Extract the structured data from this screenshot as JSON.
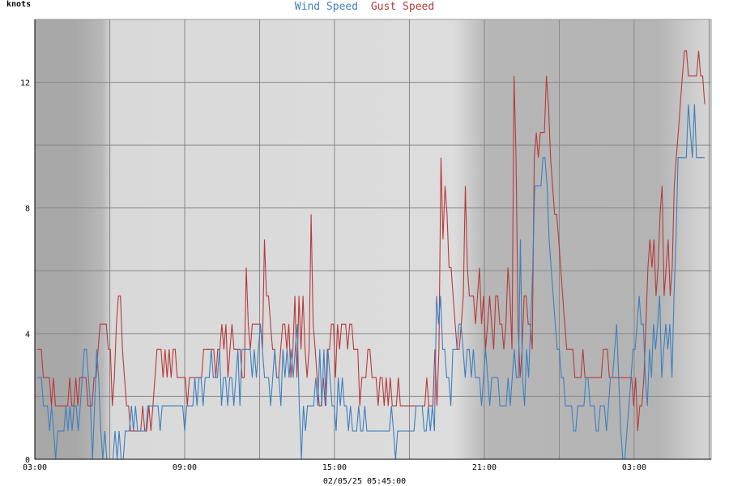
{
  "chart_data": {
    "type": "line",
    "title": "",
    "ylabel": "knots",
    "xlabel": "02/05/25 05:45:00",
    "ylim": [
      0,
      14
    ],
    "yticks": [
      0,
      4,
      8,
      12
    ],
    "x_range": [
      "02/04/25 03:00",
      "02/05/25 06:05"
    ],
    "xtick_labels": [
      "03:00",
      "09:00",
      "15:00",
      "21:00",
      "03:00"
    ],
    "grid": true,
    "legend_placement": "top-center",
    "shading": {
      "style": "grey background gradients darker at night, lighter during day",
      "day_color": "#dcdcdc",
      "night_color": "#b4b4b4"
    },
    "series": [
      {
        "name": "Wind Speed",
        "color": "#3e7fbf",
        "values": [
          2.6,
          2.6,
          2.6,
          1.7,
          1.7,
          1.7,
          0.9,
          1.7,
          0.9,
          0,
          0.9,
          0.9,
          0.9,
          0.9,
          1.7,
          0.9,
          1.7,
          0.9,
          1.7,
          1.7,
          0.9,
          1.7,
          2.6,
          3.5,
          3.5,
          2.6,
          1.7,
          0,
          1.7,
          3.5,
          2.6,
          0.9,
          0,
          0.9,
          0,
          0,
          0,
          0,
          0.9,
          0,
          0.9,
          0,
          0,
          0.9,
          0.9,
          0.9,
          1.7,
          0.9,
          1.7,
          0.9,
          0.9,
          0.9,
          0.9,
          0.9,
          1.7,
          1.7,
          1.7,
          1.7,
          1.7,
          1.7,
          0.9,
          1.7,
          1.7,
          1.7,
          1.7,
          1.7,
          1.7,
          1.7,
          1.7,
          1.7,
          1.7,
          1.7,
          0.9,
          1.7,
          1.7,
          1.7,
          1.7,
          2.6,
          1.7,
          2.6,
          2.6,
          1.7,
          2.6,
          2.6,
          2.6,
          3.5,
          2.6,
          2.6,
          2.6,
          3.5,
          1.7,
          2.6,
          2.6,
          1.7,
          2.6,
          2.6,
          1.7,
          2.6,
          3.5,
          1.7,
          3.5,
          3.5,
          3.5,
          3.5,
          3.5,
          2.6,
          3.5,
          2.6,
          3.5,
          4.3,
          3.5,
          2.6,
          2.6,
          2.6,
          1.7,
          2.6,
          3.5,
          2.6,
          2.6,
          1.7,
          3.5,
          2.6,
          3.5,
          2.6,
          3.5,
          2.6,
          3.5,
          4.3,
          1.7,
          0,
          1.7,
          0.9,
          1.7,
          1.7,
          1.7,
          1.7,
          2.6,
          1.7,
          3.5,
          1.7,
          3.5,
          1.7,
          3.5,
          2.6,
          1.7,
          1.7,
          0.9,
          2.6,
          1.7,
          2.6,
          1.7,
          1.7,
          0.9,
          1.7,
          0.9,
          0.9,
          0.9,
          1.7,
          0.9,
          0.9,
          1.7,
          0.9,
          0.9,
          0.9,
          0.9,
          0.9,
          0.9,
          0.9,
          0.9,
          0.9,
          0.9,
          0.9,
          0.9,
          1.7,
          0.9,
          0,
          0.9,
          0.9,
          0.9,
          0.9,
          0.9,
          0.9,
          0.9,
          0.9,
          0.9,
          1.7,
          1.7,
          1.7,
          1.7,
          0.9,
          0.9,
          1.7,
          0.9,
          1.7,
          0.9,
          5.2,
          4.3,
          5.2,
          3.5,
          3.5,
          2.6,
          2.6,
          1.7,
          3.5,
          3.5,
          3.5,
          4.3,
          4.3,
          3.5,
          2.6,
          3.5,
          3.5,
          2.6,
          3.5,
          2.6,
          2.6,
          2.6,
          1.7,
          2.6,
          3.5,
          2.6,
          1.7,
          2.6,
          2.6,
          2.6,
          2.6,
          1.7,
          1.7,
          1.7,
          1.7,
          2.6,
          1.7,
          2.6,
          3.5,
          2.6,
          2.6,
          7.0,
          2.6,
          1.7,
          3.5,
          2.6,
          4.3,
          6.1,
          8.7,
          8.7,
          8.7,
          8.7,
          9.6,
          9.6,
          8.7,
          7.0,
          6.1,
          5.2,
          4.3,
          3.5,
          3.5,
          2.6,
          2.6,
          1.7,
          1.7,
          1.7,
          1.7,
          0.9,
          0.9,
          1.7,
          1.7,
          1.7,
          1.7,
          2.6,
          2.6,
          1.7,
          1.7,
          1.7,
          0.9,
          0.9,
          1.7,
          1.7,
          1.7,
          0.9,
          1.7,
          2.6,
          2.6,
          3.5,
          4.3,
          2.6,
          0.9,
          0,
          0,
          0.9,
          1.7,
          2.6,
          3.5,
          3.5,
          4.3,
          5.2,
          4.3,
          4.3,
          2.6,
          1.7,
          3.5,
          2.6,
          4.3,
          3.5,
          4.3,
          5.2,
          2.6,
          3.5,
          4.3,
          3.5,
          4.3,
          2.6,
          5.2,
          7.0,
          9.6,
          9.6,
          9.6,
          9.6,
          9.6,
          11.3,
          10.4,
          9.6,
          11.3,
          9.6,
          9.6,
          9.6,
          9.6,
          9.6
        ]
      },
      {
        "name": "Gust Speed",
        "color": "#b83a3a",
        "values": [
          3.5,
          3.5,
          3.5,
          2.6,
          2.6,
          2.6,
          2.6,
          1.7,
          2.6,
          1.7,
          1.7,
          1.7,
          1.7,
          1.7,
          1.7,
          1.7,
          2.6,
          1.7,
          1.7,
          2.6,
          1.7,
          2.6,
          2.6,
          2.6,
          2.6,
          1.7,
          1.7,
          1.7,
          2.6,
          2.6,
          3.5,
          4.3,
          4.3,
          4.3,
          4.3,
          3.5,
          3.5,
          1.7,
          2.6,
          4.3,
          5.2,
          5.2,
          3.5,
          2.6,
          1.7,
          1.7,
          0.9,
          0.9,
          0.9,
          0.9,
          0.9,
          0.9,
          1.7,
          0.9,
          0.9,
          1.7,
          0.9,
          1.7,
          2.6,
          3.5,
          3.5,
          3.5,
          2.6,
          3.5,
          2.6,
          3.5,
          2.6,
          3.5,
          3.5,
          2.6,
          2.6,
          2.6,
          2.6,
          2.6,
          1.7,
          2.6,
          2.6,
          2.6,
          2.6,
          2.6,
          2.6,
          2.6,
          3.5,
          3.5,
          3.5,
          3.5,
          3.5,
          3.5,
          2.6,
          3.5,
          3.5,
          4.3,
          3.5,
          4.3,
          2.6,
          3.5,
          4.3,
          3.5,
          3.5,
          3.5,
          3.5,
          2.6,
          2.6,
          6.1,
          4.3,
          3.5,
          4.3,
          4.3,
          4.3,
          4.3,
          4.3,
          3.5,
          7.0,
          5.2,
          5.2,
          4.3,
          3.5,
          3.5,
          2.6,
          2.6,
          3.5,
          4.3,
          4.3,
          3.5,
          4.3,
          2.6,
          3.5,
          5.2,
          2.6,
          5.2,
          3.5,
          5.2,
          3.5,
          2.6,
          3.5,
          7.8,
          4.3,
          3.5,
          2.6,
          1.7,
          1.7,
          2.6,
          1.7,
          3.5,
          3.5,
          4.3,
          4.3,
          2.6,
          4.3,
          3.5,
          4.3,
          4.3,
          4.3,
          3.5,
          4.3,
          4.3,
          3.5,
          3.5,
          3.5,
          1.7,
          2.6,
          2.6,
          2.6,
          3.5,
          3.5,
          2.6,
          2.6,
          2.6,
          1.7,
          2.6,
          2.6,
          1.7,
          2.6,
          1.7,
          2.6,
          1.7,
          1.7,
          1.7,
          2.6,
          1.7,
          1.7,
          1.7,
          1.7,
          1.7,
          1.7,
          1.7,
          1.7,
          1.7,
          1.7,
          1.7,
          1.7,
          1.7,
          2.6,
          1.7,
          1.7,
          1.7,
          3.5,
          1.7,
          3.5,
          9.6,
          7.0,
          8.7,
          7.8,
          6.1,
          6.1,
          5.2,
          4.3,
          3.5,
          3.5,
          4.3,
          5.2,
          8.7,
          6.1,
          5.2,
          5.2,
          5.2,
          4.3,
          5.2,
          6.1,
          4.3,
          5.2,
          3.5,
          4.3,
          5.2,
          4.3,
          3.5,
          5.2,
          5.2,
          4.3,
          4.3,
          3.5,
          4.3,
          6.1,
          5.2,
          3.5,
          12.2,
          9.6,
          4.3,
          2.6,
          3.5,
          5.2,
          5.2,
          4.3,
          4.3,
          3.5,
          9.6,
          10.4,
          9.6,
          10.4,
          10.4,
          10.4,
          12.2,
          11.3,
          9.6,
          8.7,
          7.8,
          7.8,
          7.0,
          6.1,
          5.2,
          4.3,
          3.5,
          3.5,
          3.5,
          3.5,
          2.6,
          2.6,
          2.6,
          2.6,
          3.5,
          2.6,
          2.6,
          2.6,
          2.6,
          2.6,
          2.6,
          2.6,
          2.6,
          2.6,
          3.5,
          3.5,
          3.5,
          2.6,
          2.6,
          2.6,
          2.6,
          2.6,
          2.6,
          2.6,
          2.6,
          2.6,
          2.6,
          2.6,
          2.6,
          1.7,
          2.6,
          0.9,
          1.7,
          1.7,
          2.6,
          4.3,
          6.1,
          7.0,
          6.1,
          7.0,
          5.2,
          6.1,
          7.8,
          8.7,
          5.2,
          6.1,
          7.0,
          5.2,
          6.1,
          8.7,
          9.6,
          10.4,
          11.3,
          12.2,
          13.0,
          13.0,
          12.2,
          12.2,
          12.2,
          12.2,
          12.2,
          13.0,
          12.2,
          12.2,
          11.3
        ]
      }
    ]
  },
  "colors": {
    "grid": "#888888",
    "axis": "#000000",
    "plot_border": "#999999"
  }
}
